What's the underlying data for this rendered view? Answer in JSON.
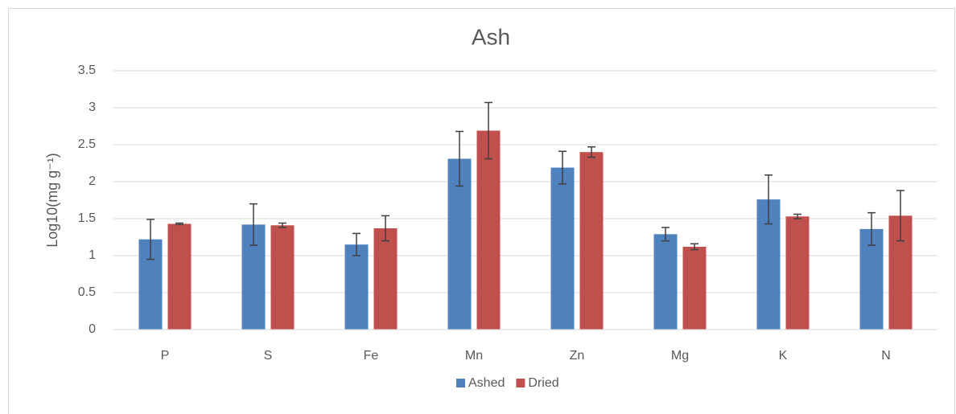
{
  "chart_data": {
    "type": "bar",
    "title": "Ash",
    "y_label": "Log10(mg g⁻¹)",
    "categories": [
      "P",
      "S",
      "Fe",
      "Mn",
      "Zn",
      "Mg",
      "K",
      "N"
    ],
    "series": [
      {
        "name": "Ashed",
        "color": "#4f81bd",
        "values": [
          1.22,
          1.42,
          1.15,
          2.31,
          2.19,
          1.29,
          1.76,
          1.36
        ],
        "errors": [
          0.27,
          0.28,
          0.15,
          0.37,
          0.22,
          0.09,
          0.33,
          0.22
        ]
      },
      {
        "name": "Dried",
        "color": "#c0504d",
        "values": [
          1.43,
          1.41,
          1.37,
          2.69,
          2.4,
          1.12,
          1.53,
          1.54
        ],
        "errors": [
          0.01,
          0.03,
          0.17,
          0.38,
          0.07,
          0.04,
          0.03,
          0.34
        ]
      }
    ],
    "ylim": [
      0,
      3.5
    ],
    "yticks": [
      0,
      0.5,
      1,
      1.5,
      2,
      2.5,
      3,
      3.5
    ],
    "grid": true,
    "legend": "bottom"
  }
}
